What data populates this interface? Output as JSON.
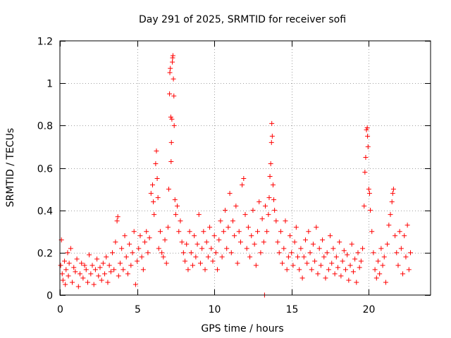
{
  "chart_data": {
    "type": "scatter",
    "title": "Day 291 of 2025, SRMTID for receiver sofi",
    "xlabel": "GPS time / hours",
    "ylabel": "SRMTID / TECUs",
    "xlim": [
      0,
      24
    ],
    "ylim": [
      0,
      1.2
    ],
    "xticks": [
      "0",
      "5",
      "10",
      "15",
      "20"
    ],
    "xtick_values": [
      0,
      5,
      10,
      15,
      20
    ],
    "yticks": [
      "0",
      "0.2",
      "0.4",
      "0.6",
      "0.8",
      "1",
      "1.2"
    ],
    "ytick_values": [
      0,
      0.2,
      0.4,
      0.6,
      0.8,
      1.0,
      1.2
    ],
    "grid": true,
    "marker": "+",
    "color": "#ff0000",
    "series": [
      {
        "name": "SRMTID",
        "points": [
          [
            0.05,
            0.14
          ],
          [
            0.1,
            0.26
          ],
          [
            0.15,
            0.1
          ],
          [
            0.2,
            0.07
          ],
          [
            0.3,
            0.16
          ],
          [
            0.35,
            0.05
          ],
          [
            0.4,
            0.12
          ],
          [
            0.5,
            0.2
          ],
          [
            0.55,
            0.09
          ],
          [
            0.6,
            0.15
          ],
          [
            0.7,
            0.22
          ],
          [
            0.8,
            0.06
          ],
          [
            0.9,
            0.13
          ],
          [
            1.0,
            0.11
          ],
          [
            1.1,
            0.17
          ],
          [
            1.2,
            0.04
          ],
          [
            1.3,
            0.1
          ],
          [
            1.4,
            0.15
          ],
          [
            1.5,
            0.08
          ],
          [
            1.6,
            0.14
          ],
          [
            1.7,
            0.12
          ],
          [
            1.8,
            0.06
          ],
          [
            1.9,
            0.19
          ],
          [
            2.0,
            0.1
          ],
          [
            2.1,
            0.14
          ],
          [
            2.2,
            0.05
          ],
          [
            2.3,
            0.12
          ],
          [
            2.4,
            0.17
          ],
          [
            2.5,
            0.09
          ],
          [
            2.6,
            0.13
          ],
          [
            2.7,
            0.07
          ],
          [
            2.8,
            0.15
          ],
          [
            2.9,
            0.1
          ],
          [
            3.0,
            0.18
          ],
          [
            3.1,
            0.06
          ],
          [
            3.2,
            0.14
          ],
          [
            3.3,
            0.11
          ],
          [
            3.4,
            0.2
          ],
          [
            3.5,
            0.12
          ],
          [
            3.6,
            0.25
          ],
          [
            3.7,
            0.35
          ],
          [
            3.75,
            0.37
          ],
          [
            3.8,
            0.09
          ],
          [
            3.9,
            0.15
          ],
          [
            4.0,
            0.22
          ],
          [
            4.1,
            0.12
          ],
          [
            4.2,
            0.28
          ],
          [
            4.3,
            0.18
          ],
          [
            4.4,
            0.1
          ],
          [
            4.5,
            0.24
          ],
          [
            4.6,
            0.14
          ],
          [
            4.7,
            0.2
          ],
          [
            4.8,
            0.3
          ],
          [
            4.9,
            0.05
          ],
          [
            5.0,
            0.16
          ],
          [
            5.1,
            0.22
          ],
          [
            5.2,
            0.28
          ],
          [
            5.3,
            0.18
          ],
          [
            5.4,
            0.12
          ],
          [
            5.5,
            0.25
          ],
          [
            5.6,
            0.3
          ],
          [
            5.7,
            0.2
          ],
          [
            5.8,
            0.27
          ],
          [
            5.9,
            0.48
          ],
          [
            6.0,
            0.52
          ],
          [
            6.05,
            0.44
          ],
          [
            6.1,
            0.38
          ],
          [
            6.2,
            0.62
          ],
          [
            6.25,
            0.68
          ],
          [
            6.3,
            0.55
          ],
          [
            6.35,
            0.46
          ],
          [
            6.4,
            0.22
          ],
          [
            6.5,
            0.3
          ],
          [
            6.6,
            0.2
          ],
          [
            6.7,
            0.18
          ],
          [
            6.8,
            0.26
          ],
          [
            6.9,
            0.15
          ],
          [
            7.0,
            0.32
          ],
          [
            7.05,
            0.5
          ],
          [
            7.1,
            0.95
          ],
          [
            7.12,
            1.05
          ],
          [
            7.15,
            1.07
          ],
          [
            7.18,
            0.84
          ],
          [
            7.2,
            0.63
          ],
          [
            7.22,
            0.72
          ],
          [
            7.25,
            0.83
          ],
          [
            7.28,
            1.1
          ],
          [
            7.3,
            1.12
          ],
          [
            7.32,
            1.13
          ],
          [
            7.35,
            1.02
          ],
          [
            7.38,
            0.94
          ],
          [
            7.4,
            0.8
          ],
          [
            7.45,
            0.45
          ],
          [
            7.5,
            0.38
          ],
          [
            7.6,
            0.42
          ],
          [
            7.7,
            0.3
          ],
          [
            7.8,
            0.35
          ],
          [
            7.9,
            0.25
          ],
          [
            8.0,
            0.2
          ],
          [
            8.1,
            0.16
          ],
          [
            8.2,
            0.24
          ],
          [
            8.3,
            0.12
          ],
          [
            8.4,
            0.3
          ],
          [
            8.5,
            0.2
          ],
          [
            8.6,
            0.14
          ],
          [
            8.7,
            0.28
          ],
          [
            8.8,
            0.18
          ],
          [
            8.9,
            0.24
          ],
          [
            9.0,
            0.38
          ],
          [
            9.1,
            0.15
          ],
          [
            9.2,
            0.22
          ],
          [
            9.3,
            0.3
          ],
          [
            9.4,
            0.12
          ],
          [
            9.5,
            0.25
          ],
          [
            9.6,
            0.18
          ],
          [
            9.7,
            0.32
          ],
          [
            9.8,
            0.22
          ],
          [
            9.9,
            0.16
          ],
          [
            10.0,
            0.28
          ],
          [
            10.1,
            0.2
          ],
          [
            10.2,
            0.12
          ],
          [
            10.3,
            0.26
          ],
          [
            10.4,
            0.35
          ],
          [
            10.5,
            0.18
          ],
          [
            10.6,
            0.3
          ],
          [
            10.7,
            0.4
          ],
          [
            10.8,
            0.22
          ],
          [
            10.9,
            0.32
          ],
          [
            11.0,
            0.48
          ],
          [
            11.1,
            0.2
          ],
          [
            11.2,
            0.35
          ],
          [
            11.3,
            0.28
          ],
          [
            11.4,
            0.42
          ],
          [
            11.5,
            0.15
          ],
          [
            11.6,
            0.3
          ],
          [
            11.7,
            0.25
          ],
          [
            11.8,
            0.52
          ],
          [
            11.9,
            0.55
          ],
          [
            12.0,
            0.38
          ],
          [
            12.1,
            0.22
          ],
          [
            12.2,
            0.32
          ],
          [
            12.3,
            0.18
          ],
          [
            12.4,
            0.28
          ],
          [
            12.5,
            0.4
          ],
          [
            12.6,
            0.24
          ],
          [
            12.7,
            0.14
          ],
          [
            12.8,
            0.3
          ],
          [
            12.9,
            0.44
          ],
          [
            13.0,
            0.2
          ],
          [
            13.1,
            0.36
          ],
          [
            13.2,
            0.25
          ],
          [
            13.25,
            0.0
          ],
          [
            13.3,
            0.42
          ],
          [
            13.4,
            0.3
          ],
          [
            13.5,
            0.38
          ],
          [
            13.55,
            0.46
          ],
          [
            13.6,
            0.56
          ],
          [
            13.65,
            0.62
          ],
          [
            13.7,
            0.72
          ],
          [
            13.72,
            0.81
          ],
          [
            13.75,
            0.75
          ],
          [
            13.8,
            0.52
          ],
          [
            13.85,
            0.45
          ],
          [
            13.9,
            0.4
          ],
          [
            14.0,
            0.35
          ],
          [
            14.1,
            0.25
          ],
          [
            14.2,
            0.2
          ],
          [
            14.3,
            0.3
          ],
          [
            14.4,
            0.15
          ],
          [
            14.5,
            0.22
          ],
          [
            14.6,
            0.35
          ],
          [
            14.7,
            0.12
          ],
          [
            14.8,
            0.18
          ],
          [
            14.9,
            0.28
          ],
          [
            15.0,
            0.2
          ],
          [
            15.1,
            0.14
          ],
          [
            15.2,
            0.25
          ],
          [
            15.3,
            0.32
          ],
          [
            15.4,
            0.18
          ],
          [
            15.5,
            0.12
          ],
          [
            15.6,
            0.22
          ],
          [
            15.7,
            0.08
          ],
          [
            15.8,
            0.18
          ],
          [
            15.9,
            0.26
          ],
          [
            16.0,
            0.15
          ],
          [
            16.1,
            0.3
          ],
          [
            16.2,
            0.2
          ],
          [
            16.3,
            0.12
          ],
          [
            16.4,
            0.24
          ],
          [
            16.5,
            0.16
          ],
          [
            16.6,
            0.32
          ],
          [
            16.7,
            0.1
          ],
          [
            16.8,
            0.22
          ],
          [
            16.9,
            0.14
          ],
          [
            17.0,
            0.26
          ],
          [
            17.1,
            0.18
          ],
          [
            17.2,
            0.08
          ],
          [
            17.3,
            0.2
          ],
          [
            17.4,
            0.12
          ],
          [
            17.5,
            0.28
          ],
          [
            17.6,
            0.15
          ],
          [
            17.7,
            0.22
          ],
          [
            17.8,
            0.1
          ],
          [
            17.9,
            0.18
          ],
          [
            18.0,
            0.13
          ],
          [
            18.1,
            0.25
          ],
          [
            18.2,
            0.09
          ],
          [
            18.3,
            0.16
          ],
          [
            18.4,
            0.21
          ],
          [
            18.5,
            0.12
          ],
          [
            18.6,
            0.19
          ],
          [
            18.7,
            0.07
          ],
          [
            18.8,
            0.14
          ],
          [
            18.9,
            0.24
          ],
          [
            19.0,
            0.11
          ],
          [
            19.1,
            0.17
          ],
          [
            19.2,
            0.06
          ],
          [
            19.3,
            0.2
          ],
          [
            19.4,
            0.13
          ],
          [
            19.5,
            0.16
          ],
          [
            19.6,
            0.22
          ],
          [
            19.7,
            0.42
          ],
          [
            19.75,
            0.58
          ],
          [
            19.8,
            0.65
          ],
          [
            19.85,
            0.78
          ],
          [
            19.9,
            0.79
          ],
          [
            19.92,
            0.75
          ],
          [
            19.95,
            0.7
          ],
          [
            20.0,
            0.5
          ],
          [
            20.05,
            0.48
          ],
          [
            20.1,
            0.4
          ],
          [
            20.2,
            0.3
          ],
          [
            20.3,
            0.2
          ],
          [
            20.4,
            0.12
          ],
          [
            20.5,
            0.08
          ],
          [
            20.6,
            0.16
          ],
          [
            20.7,
            0.1
          ],
          [
            20.8,
            0.22
          ],
          [
            20.9,
            0.14
          ],
          [
            21.0,
            0.18
          ],
          [
            21.1,
            0.06
          ],
          [
            21.2,
            0.24
          ],
          [
            21.3,
            0.33
          ],
          [
            21.4,
            0.38
          ],
          [
            21.5,
            0.44
          ],
          [
            21.55,
            0.48
          ],
          [
            21.6,
            0.5
          ],
          [
            21.7,
            0.28
          ],
          [
            21.8,
            0.2
          ],
          [
            21.9,
            0.14
          ],
          [
            22.0,
            0.3
          ],
          [
            22.1,
            0.22
          ],
          [
            22.2,
            0.1
          ],
          [
            22.3,
            0.28
          ],
          [
            22.4,
            0.18
          ],
          [
            22.5,
            0.33
          ],
          [
            22.6,
            0.12
          ],
          [
            22.7,
            0.2
          ]
        ]
      }
    ]
  }
}
